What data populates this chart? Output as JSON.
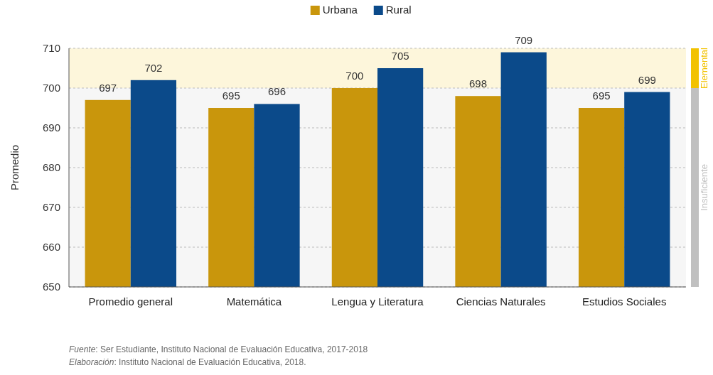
{
  "chart_data": {
    "type": "bar",
    "ylabel": "Promedio",
    "categories": [
      "Promedio general",
      "Matemática",
      "Lengua y Literatura",
      "Ciencias Naturales",
      "Estudios Sociales"
    ],
    "series": [
      {
        "name": "Urbana",
        "color": "#c9960c",
        "values": [
          697,
          695,
          700,
          698,
          695
        ]
      },
      {
        "name": "Rural",
        "color": "#0b4a8a",
        "values": [
          702,
          696,
          705,
          709,
          699
        ]
      }
    ],
    "ylim": [
      650,
      710
    ],
    "yticks": [
      650,
      660,
      670,
      680,
      690,
      700,
      710
    ],
    "grid": "y",
    "legend": "top",
    "data_labels": true,
    "bands": [
      {
        "axis": "y",
        "from": 700,
        "to": 710,
        "label": "Elemental",
        "color": "#f2c200"
      },
      {
        "axis": "y",
        "from": 650,
        "to": 700,
        "label": "Insuficiente",
        "color": "#c0c0c0"
      }
    ],
    "annotations": [
      "Fuente: Ser Estudiante, Instituto Nacional de Evaluación Educativa, 2017-2018",
      "Elaboración: Instituto Nacional de Evaluación Educativa, 2018."
    ]
  }
}
